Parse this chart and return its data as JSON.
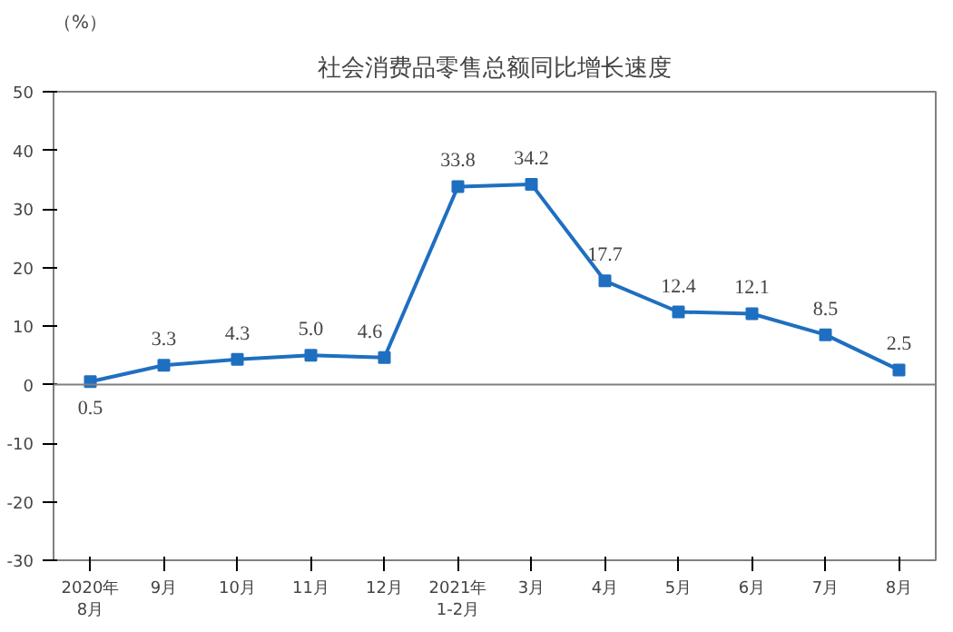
{
  "chart_data": {
    "type": "line",
    "title": "社会消费品零售总额同比增长速度",
    "ylabel": "（%）",
    "categories": [
      "2020年\n8月",
      "9月",
      "10月",
      "11月",
      "12月",
      "2021年\n1-2月",
      "3月",
      "4月",
      "5月",
      "6月",
      "7月",
      "8月"
    ],
    "series": [
      {
        "color": "#1f6fc0",
        "values": [
          0.5,
          3.3,
          4.3,
          5.0,
          4.6,
          33.8,
          34.2,
          17.7,
          12.4,
          12.1,
          8.5,
          2.5
        ]
      }
    ],
    "value_labels": [
      "0.5",
      "3.3",
      "4.3",
      "5.0",
      "4.6",
      "33.8",
      "34.2",
      "17.7",
      "12.4",
      "12.1",
      "8.5",
      "2.5"
    ],
    "ylim": [
      -30,
      50
    ],
    "yticks": [
      -30,
      -20,
      -10,
      0,
      10,
      20,
      30,
      40,
      50
    ],
    "ref_lines": [
      {
        "axis": "y",
        "value": 0,
        "color": "#808080"
      }
    ],
    "grid": false,
    "marker": "square",
    "line_style": "solid"
  }
}
